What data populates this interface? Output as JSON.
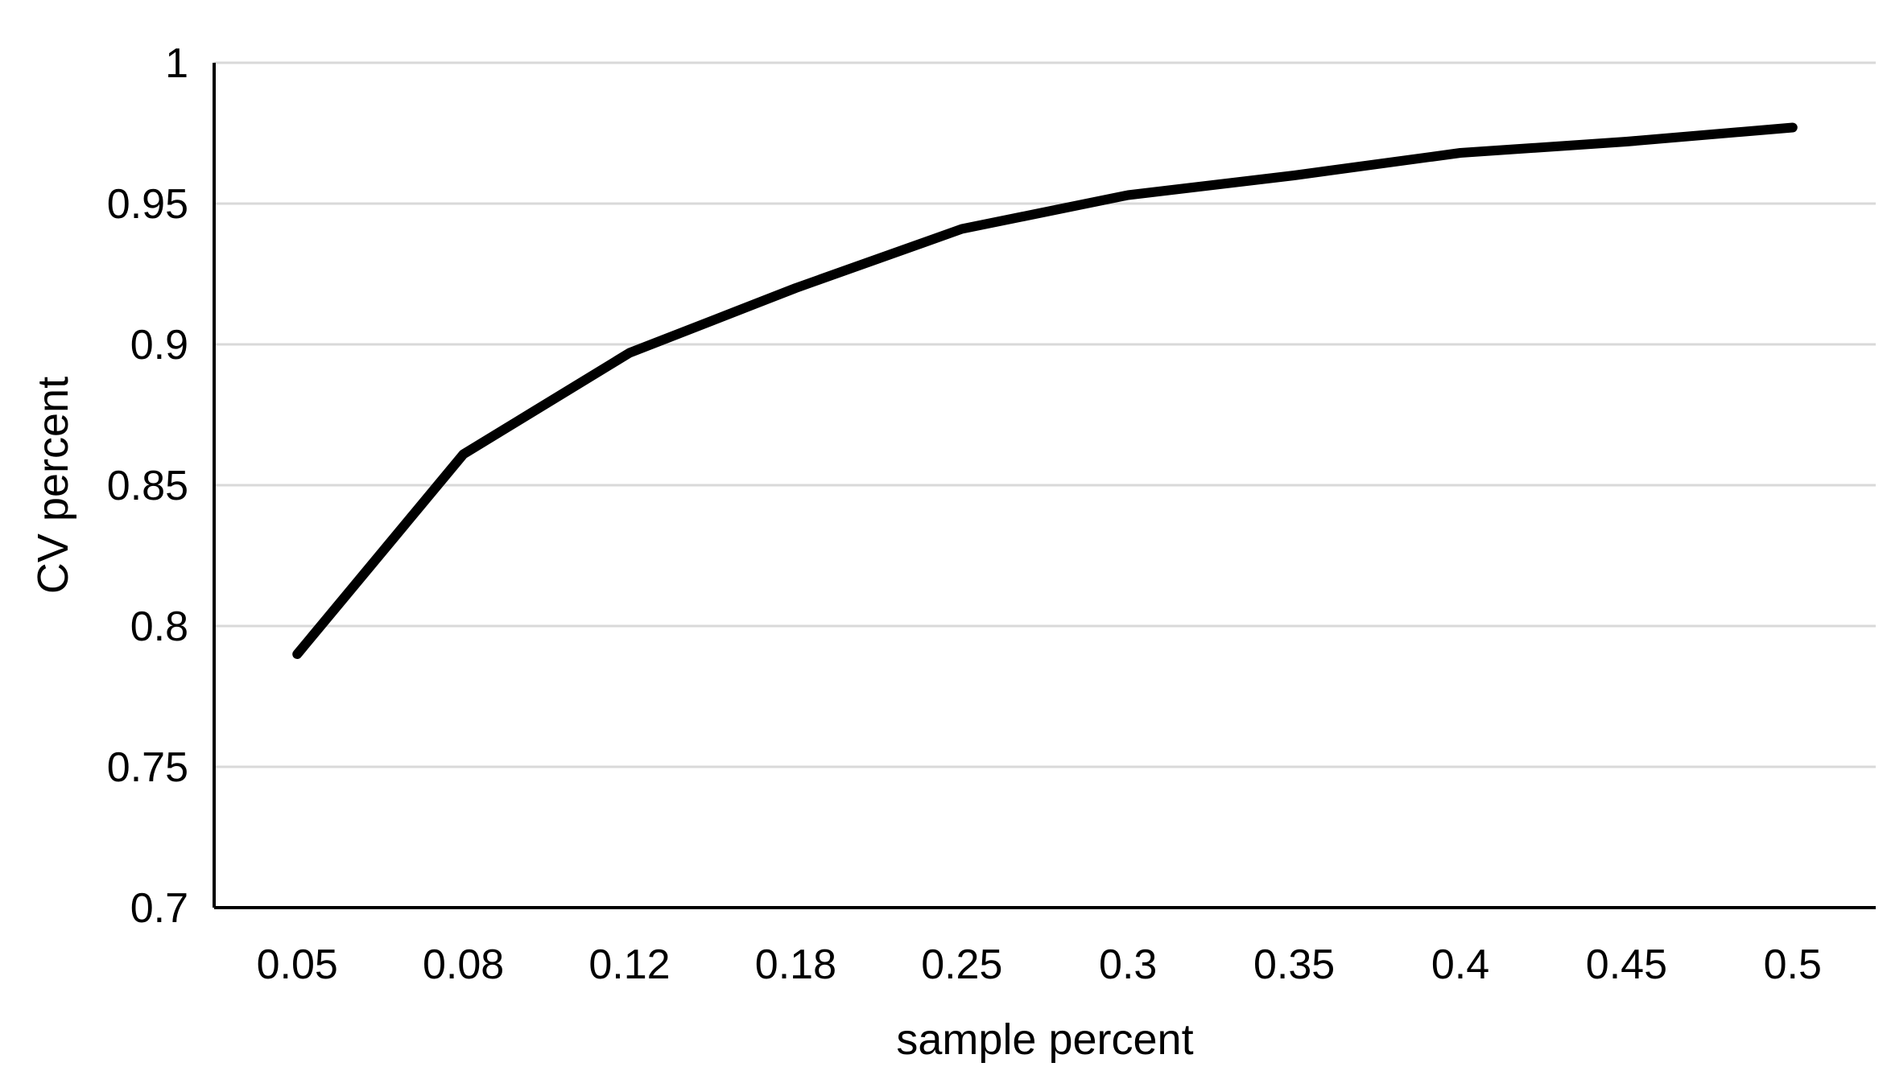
{
  "chart_data": {
    "type": "line",
    "title": "",
    "xlabel": "sample percent",
    "ylabel": "CV percent",
    "categories": [
      "0.05",
      "0.08",
      "0.12",
      "0.18",
      "0.25",
      "0.3",
      "0.35",
      "0.4",
      "0.45",
      "0.5"
    ],
    "series": [
      {
        "values": [
          0.79,
          0.861,
          0.897,
          0.92,
          0.941,
          0.953,
          0.96,
          0.968,
          0.972,
          0.977
        ]
      }
    ],
    "ylim": [
      0.7,
      1
    ],
    "yticks": [
      "0.7",
      "0.75",
      "0.8",
      "0.85",
      "0.9",
      "0.95",
      "1"
    ],
    "grid": "horizontal",
    "legend": "none",
    "colors": {
      "line": "#000000",
      "grid": "#d9d9d9",
      "axis": "#000000"
    }
  }
}
